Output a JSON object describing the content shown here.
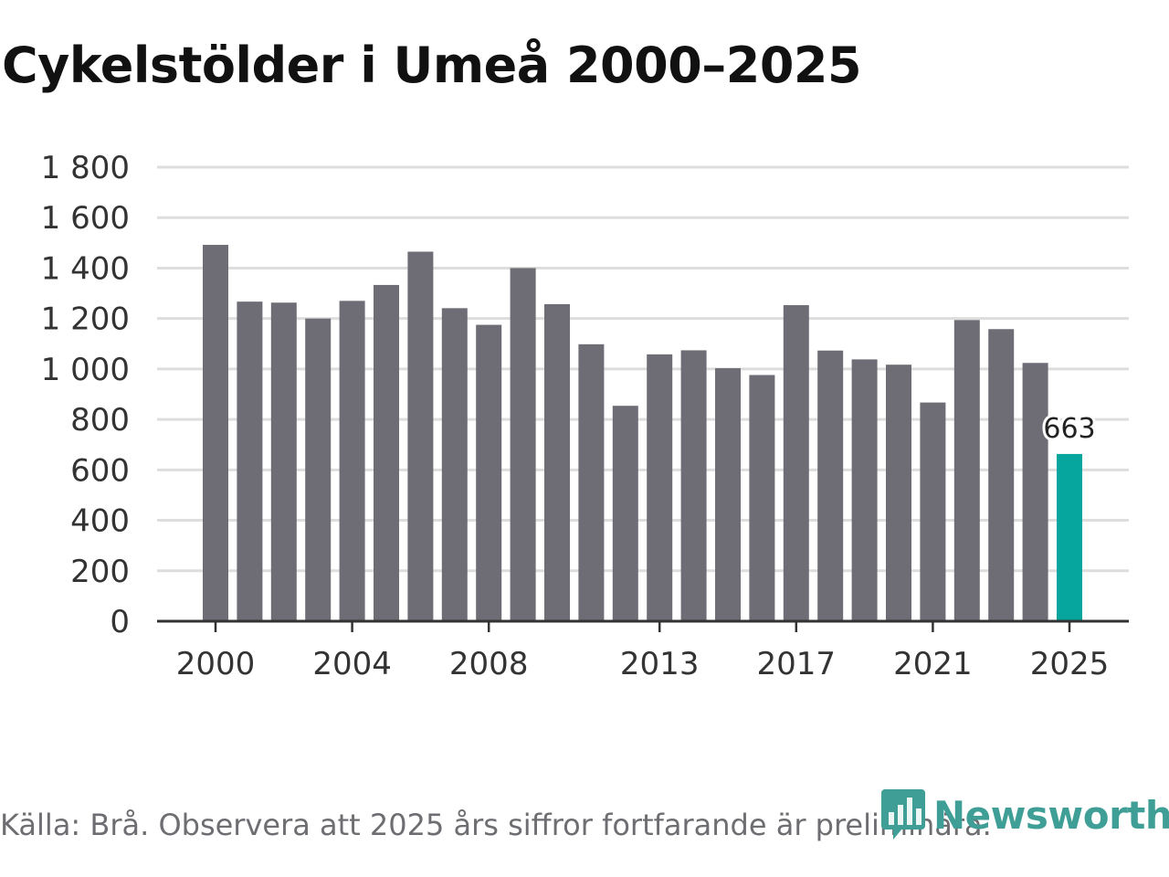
{
  "title": "Cykelstölder i Umeå 2000–2025",
  "footer": "Källa: Brå. Observera att 2025 års siffror fortfarande är preliminära.",
  "brand": {
    "name": "Newsworthy",
    "icon": "newsworthy-logo-icon",
    "color": "#3f9e96"
  },
  "colors": {
    "bar": "#6e6d75",
    "highlight": "#06a59d",
    "grid": "#dddddd",
    "axis": "#333333",
    "text": "#333333"
  },
  "chart_data": {
    "type": "bar",
    "title": "Cykelstölder i Umeå 2000–2025",
    "xlabel": "",
    "ylabel": "",
    "ylim": [
      0,
      1800
    ],
    "yticks": [
      0,
      200,
      400,
      600,
      800,
      1000,
      1200,
      1400,
      1600,
      1800
    ],
    "ytick_labels": [
      "0",
      "200",
      "400",
      "600",
      "800",
      "1 000",
      "1 200",
      "1 400",
      "1 600",
      "1 800"
    ],
    "xtick_labels": [
      "2000",
      "2004",
      "2008",
      "2013",
      "2017",
      "2021",
      "2025"
    ],
    "categories": [
      2000,
      2001,
      2002,
      2003,
      2004,
      2005,
      2006,
      2007,
      2008,
      2009,
      2010,
      2011,
      2012,
      2013,
      2014,
      2015,
      2016,
      2017,
      2018,
      2019,
      2020,
      2021,
      2022,
      2023,
      2024,
      2025
    ],
    "values": [
      1492,
      1267,
      1263,
      1200,
      1270,
      1333,
      1465,
      1241,
      1175,
      1400,
      1257,
      1098,
      854,
      1058,
      1074,
      1003,
      976,
      1253,
      1073,
      1038,
      1017,
      867,
      1194,
      1158,
      1024,
      663
    ],
    "highlight_category": 2025,
    "annotations": [
      {
        "category": 2025,
        "label": "663"
      }
    ],
    "grid": true
  }
}
